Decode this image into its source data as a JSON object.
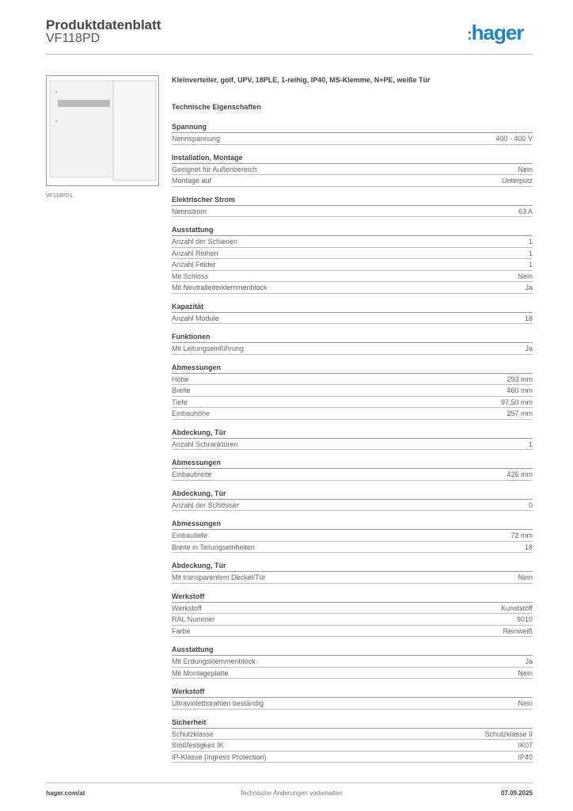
{
  "header": {
    "title": "Produktdatenblatt",
    "subtitle": "VF118PD",
    "logo": "hager"
  },
  "image": {
    "caption": "VF118PD1"
  },
  "description": "Kleinverteiler, golf, UPV, 18PLE, 1-reihig, IP40, MS-Klemme, N+PE, weiße Tür",
  "tech_heading": "Technische Eigenschaften",
  "sections": [
    {
      "title": "Spannung",
      "rows": [
        [
          "Nennspannung",
          "400 - 400 V"
        ]
      ]
    },
    {
      "title": "Installation, Montage",
      "rows": [
        [
          "Geeignet für Außenbereich",
          "Nein"
        ],
        [
          "Montage auf",
          "Unterputz"
        ]
      ]
    },
    {
      "title": "Elektrischer Strom",
      "rows": [
        [
          "Nennstrom",
          "63 A"
        ]
      ]
    },
    {
      "title": "Ausstattung",
      "rows": [
        [
          "Anzahl der Schienen",
          "1"
        ],
        [
          "Anzahl Reihen",
          "1"
        ],
        [
          "Anzahl Felder",
          "1"
        ],
        [
          "Mit Schloss",
          "Nein"
        ],
        [
          "Mit Neutralleiterklemmenblock",
          "Ja"
        ]
      ]
    },
    {
      "title": "Kapazität",
      "rows": [
        [
          "Anzahl Module",
          "18"
        ]
      ]
    },
    {
      "title": "Funktionen",
      "rows": [
        [
          "Mit Leitungseinführung",
          "Ja"
        ]
      ]
    },
    {
      "title": "Abmessungen",
      "rows": [
        [
          "Höhe",
          "293 mm"
        ],
        [
          "Breite",
          "460 mm"
        ],
        [
          "Tiefe",
          "97,50 mm"
        ],
        [
          "Einbauhöhe",
          "257 mm"
        ]
      ]
    },
    {
      "title": "Abdeckung, Tür",
      "rows": [
        [
          "Anzahl Schranktüren",
          "1"
        ]
      ]
    },
    {
      "title": "Abmessungen",
      "rows": [
        [
          "Einbaubreite",
          "426 mm"
        ]
      ]
    },
    {
      "title": "Abdeckung, Tür",
      "rows": [
        [
          "Anzahl der Schlösser",
          "0"
        ]
      ]
    },
    {
      "title": "Abmessungen",
      "rows": [
        [
          "Einbautiefe",
          "72 mm"
        ],
        [
          "Breite in Teilungseinheiten",
          "18"
        ]
      ]
    },
    {
      "title": "Abdeckung, Tür",
      "rows": [
        [
          "Mit transparentem Deckel/Tür",
          "Nein"
        ]
      ]
    },
    {
      "title": "Werkstoff",
      "rows": [
        [
          "Werkstoff",
          "Kunststoff"
        ],
        [
          "RAL Nummer",
          "9010"
        ],
        [
          "Farbe",
          "Reinweiß"
        ]
      ]
    },
    {
      "title": "Ausstattung",
      "rows": [
        [
          "Mit Erdungsklemmenblock",
          "Ja"
        ],
        [
          "Mit Montageplatte",
          "Nein"
        ]
      ]
    },
    {
      "title": "Werkstoff",
      "rows": [
        [
          "Ultraviolettstrahlen beständig",
          "Nein"
        ]
      ]
    },
    {
      "title": "Sicherheit",
      "rows": [
        [
          "Schutzklasse",
          "Schutzklasse II"
        ],
        [
          "Stoßfestigkeit IK",
          "IK07"
        ],
        [
          "IP-Klasse (Ingress Protection)",
          "IP40"
        ]
      ]
    }
  ],
  "footer": {
    "website": "hager.com/at",
    "note": "Technische Änderungen vorbehalten",
    "date": "07.09.2025"
  }
}
